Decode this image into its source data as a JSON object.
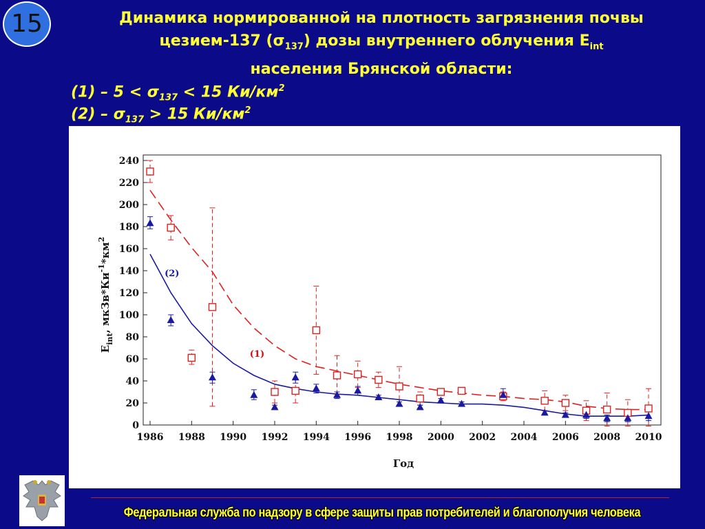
{
  "slide_number": "15",
  "title": {
    "line1": "Динамика нормированной на плотность загрязнения почвы",
    "line2_a": "цезием-137 (σ",
    "line2_sub1": "137",
    "line2_b": ") дозы внутреннего облучения E",
    "line2_sub2": "int",
    "line3": "населения Брянской области:"
  },
  "legend_lines": {
    "l1_a": "(1) – 5 < σ",
    "l1_sub": "137",
    "l1_b": " < 15 Ки/км",
    "l1_sup": "2",
    "l2_a": "(2) – σ",
    "l2_sub": "137",
    "l2_b": " > 15 Ки/км",
    "l2_sup": "2"
  },
  "footer": "Федеральная служба по надзору в сфере защиты прав потребителей и благополучия человека",
  "colors": {
    "background": "#0b0b8a",
    "accent": "#ffff33",
    "series1": "#e02020",
    "series2": "#1a1aa0"
  },
  "icons": {
    "emblem": "double-headed-eagle-emblem-icon"
  },
  "chart_data": {
    "type": "scatter",
    "xlabel": "Год",
    "ylabel_main": "E",
    "ylabel_sub": "int",
    "ylabel_rest": ", мкЗв*Ки",
    "ylabel_sup1": "-1",
    "ylabel_rest2": "*км",
    "ylabel_sup2": "2",
    "xlim": [
      1986,
      2010
    ],
    "ylim": [
      0,
      240
    ],
    "x_ticks": [
      "1986",
      "1988",
      "1990",
      "1992",
      "1994",
      "1996",
      "1998",
      "2000",
      "2002",
      "2004",
      "2006",
      "2008",
      "2010"
    ],
    "y_ticks": [
      "0",
      "20",
      "40",
      "60",
      "80",
      "100",
      "120",
      "140",
      "160",
      "180",
      "200",
      "220",
      "240"
    ],
    "series": [
      {
        "name": "(1)",
        "marker": "open-square",
        "color": "#e02020",
        "points": [
          {
            "x": 1986,
            "y": 230,
            "lo": 220,
            "hi": 240
          },
          {
            "x": 1987,
            "y": 179,
            "lo": 168,
            "hi": 190
          },
          {
            "x": 1988,
            "y": 61,
            "lo": 55,
            "hi": 68
          },
          {
            "x": 1989,
            "y": 107,
            "lo": 17,
            "hi": 197
          },
          {
            "x": 1992,
            "y": 30,
            "lo": 20,
            "hi": 40
          },
          {
            "x": 1993,
            "y": 31,
            "lo": 20,
            "hi": 42
          },
          {
            "x": 1994,
            "y": 86,
            "lo": 46,
            "hi": 126
          },
          {
            "x": 1995,
            "y": 45,
            "lo": 28,
            "hi": 63
          },
          {
            "x": 1996,
            "y": 46,
            "lo": 34,
            "hi": 58
          },
          {
            "x": 1997,
            "y": 41,
            "lo": 34,
            "hi": 48
          },
          {
            "x": 1998,
            "y": 35,
            "lo": 17,
            "hi": 53
          },
          {
            "x": 1999,
            "y": 24,
            "lo": 18,
            "hi": 30
          },
          {
            "x": 2000,
            "y": 30,
            "lo": 27,
            "hi": 33
          },
          {
            "x": 2001,
            "y": 31,
            "lo": 28,
            "hi": 34
          },
          {
            "x": 2003,
            "y": 26,
            "lo": 22,
            "hi": 30
          },
          {
            "x": 2005,
            "y": 22,
            "lo": 13,
            "hi": 31
          },
          {
            "x": 2006,
            "y": 20,
            "lo": 13,
            "hi": 27
          },
          {
            "x": 2007,
            "y": 13,
            "lo": 4,
            "hi": 22
          },
          {
            "x": 2008,
            "y": 14,
            "lo": -1,
            "hi": 29
          },
          {
            "x": 2009,
            "y": 11,
            "lo": -1,
            "hi": 23
          },
          {
            "x": 2010,
            "y": 15,
            "lo": -1,
            "hi": 33
          }
        ],
        "fit": [
          [
            1986,
            213
          ],
          [
            1987,
            186
          ],
          [
            1988,
            161
          ],
          [
            1989,
            139
          ],
          [
            1990,
            109
          ],
          [
            1991,
            88
          ],
          [
            1992,
            72
          ],
          [
            1993,
            60
          ],
          [
            1994,
            53
          ],
          [
            1995,
            49
          ],
          [
            1996,
            45
          ],
          [
            1997,
            41
          ],
          [
            1998,
            37
          ],
          [
            1999,
            34
          ],
          [
            2000,
            31
          ],
          [
            2001,
            29
          ],
          [
            2002,
            27
          ],
          [
            2003,
            26
          ],
          [
            2004,
            24
          ],
          [
            2005,
            23
          ],
          [
            2006,
            21
          ],
          [
            2007,
            17
          ],
          [
            2008,
            15
          ],
          [
            2009,
            14
          ],
          [
            2010,
            14
          ]
        ]
      },
      {
        "name": "(2)",
        "marker": "filled-triangle",
        "color": "#1a1aa0",
        "points": [
          {
            "x": 1986,
            "y": 183,
            "lo": 178,
            "hi": 189
          },
          {
            "x": 1987,
            "y": 95,
            "lo": 90,
            "hi": 100
          },
          {
            "x": 1989,
            "y": 43,
            "lo": 38,
            "hi": 48
          },
          {
            "x": 1991,
            "y": 27,
            "lo": 23,
            "hi": 32
          },
          {
            "x": 1992,
            "y": 16,
            "lo": 14,
            "hi": 18
          },
          {
            "x": 1993,
            "y": 43,
            "lo": 38,
            "hi": 48
          },
          {
            "x": 1994,
            "y": 33,
            "lo": 29,
            "hi": 37
          },
          {
            "x": 1995,
            "y": 27,
            "lo": 24,
            "hi": 30
          },
          {
            "x": 1996,
            "y": 31,
            "lo": 27,
            "hi": 35
          },
          {
            "x": 1997,
            "y": 25,
            "lo": 23,
            "hi": 27
          },
          {
            "x": 1998,
            "y": 19,
            "lo": 17,
            "hi": 21
          },
          {
            "x": 1999,
            "y": 16,
            "lo": 14,
            "hi": 18
          },
          {
            "x": 2000,
            "y": 22,
            "lo": 20,
            "hi": 24
          },
          {
            "x": 2001,
            "y": 19,
            "lo": 17,
            "hi": 21
          },
          {
            "x": 2003,
            "y": 27,
            "lo": 25,
            "hi": 33
          },
          {
            "x": 2005,
            "y": 11,
            "lo": 9,
            "hi": 13
          },
          {
            "x": 2006,
            "y": 9,
            "lo": 7,
            "hi": 11
          },
          {
            "x": 2007,
            "y": 9,
            "lo": 6,
            "hi": 13
          },
          {
            "x": 2008,
            "y": 6,
            "lo": 3,
            "hi": 9
          },
          {
            "x": 2009,
            "y": 6,
            "lo": 3,
            "hi": 9
          },
          {
            "x": 2010,
            "y": 8,
            "lo": 4,
            "hi": 12
          }
        ],
        "fit": [
          [
            1986,
            155
          ],
          [
            1987,
            120
          ],
          [
            1988,
            92
          ],
          [
            1989,
            72
          ],
          [
            1990,
            56
          ],
          [
            1991,
            45
          ],
          [
            1992,
            37
          ],
          [
            1993,
            33
          ],
          [
            1994,
            30
          ],
          [
            1995,
            28
          ],
          [
            1996,
            27
          ],
          [
            1997,
            25
          ],
          [
            1998,
            23
          ],
          [
            1999,
            21
          ],
          [
            2000,
            20
          ],
          [
            2001,
            19
          ],
          [
            2002,
            19
          ],
          [
            2003,
            18
          ],
          [
            2004,
            16
          ],
          [
            2005,
            13
          ],
          [
            2006,
            10
          ],
          [
            2007,
            8
          ],
          [
            2008,
            8
          ],
          [
            2009,
            8
          ],
          [
            2010,
            9
          ]
        ]
      }
    ],
    "annotations": [
      {
        "text": "(1)",
        "x": 1990.8,
        "y": 62,
        "color": "#cc1010"
      },
      {
        "text": "(2)",
        "x": 1986.7,
        "y": 135,
        "color": "#1a1aa0"
      }
    ]
  }
}
